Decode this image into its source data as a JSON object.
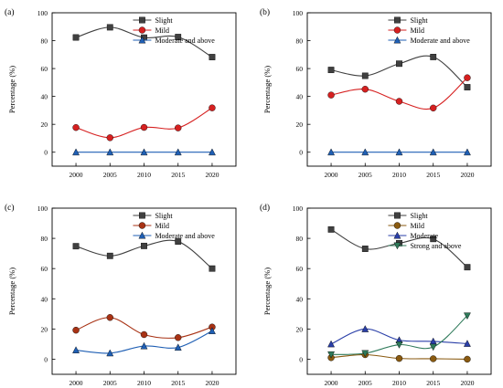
{
  "chart_data": [
    {
      "type": "line",
      "panel_label": "(a)",
      "x": [
        "2000",
        "2005",
        "2010",
        "2015",
        "2020"
      ],
      "ylabel": "Percentage (%)",
      "ylim": [
        -10,
        100
      ],
      "yticks": [
        "0",
        "20",
        "40",
        "60",
        "80",
        "100"
      ],
      "legend": "top-right",
      "grid": false,
      "series": [
        {
          "name": "Slight",
          "values": [
            82.3,
            89.6,
            82.2,
            82.6,
            68.2
          ],
          "color": "#404040",
          "marker": "square"
        },
        {
          "name": "Mild",
          "values": [
            17.7,
            10.4,
            17.8,
            17.4,
            31.8
          ],
          "color": "#d62020",
          "marker": "circle"
        },
        {
          "name": "Moderate and above",
          "values": [
            0,
            0,
            0,
            0,
            0
          ],
          "color": "#1f5fb4",
          "marker": "triangle-up"
        }
      ]
    },
    {
      "type": "line",
      "panel_label": "(b)",
      "x": [
        "2000",
        "2005",
        "2010",
        "2015",
        "2020"
      ],
      "ylabel": "Percentage (%)",
      "ylim": [
        -10,
        100
      ],
      "yticks": [
        "0",
        "20",
        "40",
        "60",
        "80",
        "100"
      ],
      "legend": "top-right",
      "grid": false,
      "series": [
        {
          "name": "Slight",
          "values": [
            59,
            54.8,
            63.5,
            68.3,
            46.6
          ],
          "color": "#404040",
          "marker": "square"
        },
        {
          "name": "Mild",
          "values": [
            41,
            45.2,
            36.5,
            31.7,
            53.4
          ],
          "color": "#d62020",
          "marker": "circle"
        },
        {
          "name": "Moderate and above",
          "values": [
            0,
            0,
            0,
            0,
            0
          ],
          "color": "#1f5fb4",
          "marker": "triangle-up"
        }
      ]
    },
    {
      "type": "line",
      "panel_label": "(c)",
      "x": [
        "2000",
        "2005",
        "2010",
        "2015",
        "2020"
      ],
      "ylabel": "Percentage (%)",
      "ylim": [
        -10,
        100
      ],
      "yticks": [
        "0",
        "20",
        "40",
        "60",
        "80",
        "100"
      ],
      "legend": "top-right",
      "grid": false,
      "series": [
        {
          "name": "Slight",
          "values": [
            74.8,
            68.4,
            75,
            77.9,
            60
          ],
          "color": "#404040",
          "marker": "square"
        },
        {
          "name": "Mild",
          "values": [
            19.2,
            27.6,
            16.3,
            14.3,
            21.3
          ],
          "color": "#a83214",
          "marker": "circle"
        },
        {
          "name": "Moderate and above",
          "values": [
            6,
            4,
            8.7,
            7.8,
            18.7
          ],
          "color": "#1f5fb4",
          "marker": "triangle-up"
        }
      ]
    },
    {
      "type": "line",
      "panel_label": "(d)",
      "x": [
        "2000",
        "2005",
        "2010",
        "2015",
        "2020"
      ],
      "ylabel": "Percentage (%)",
      "ylim": [
        -10,
        100
      ],
      "yticks": [
        "0",
        "20",
        "40",
        "60",
        "80",
        "100"
      ],
      "legend": "top-right",
      "grid": false,
      "series": [
        {
          "name": "Slight",
          "values": [
            85.9,
            73.1,
            76.8,
            79.6,
            60.9
          ],
          "color": "#404040",
          "marker": "square"
        },
        {
          "name": "Mild",
          "values": [
            1,
            3,
            0.5,
            0.3,
            0
          ],
          "color": "#8a5a10",
          "marker": "circle"
        },
        {
          "name": "Moderate",
          "values": [
            10,
            20,
            12.6,
            11.8,
            10.3
          ],
          "color": "#2a3fa8",
          "marker": "triangle-up"
        },
        {
          "name": "Strong and above",
          "values": [
            3.1,
            3.9,
            9.6,
            8.1,
            28.8
          ],
          "color": "#2f7a5a",
          "marker": "triangle-down"
        }
      ]
    }
  ]
}
